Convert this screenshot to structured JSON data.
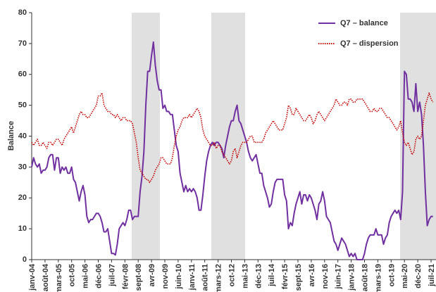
{
  "chart_data": {
    "type": "line",
    "y_label": "Balance",
    "categories": [
      "janv-04",
      null,
      null,
      null,
      null,
      null,
      null,
      "août-04",
      null,
      null,
      null,
      null,
      null,
      null,
      "mars-05",
      null,
      null,
      null,
      null,
      null,
      null,
      "oct-05",
      null,
      null,
      null,
      null,
      null,
      null,
      "mai-06",
      null,
      null,
      null,
      null,
      null,
      null,
      "déc-06",
      null,
      null,
      null,
      null,
      null,
      null,
      "juil-07",
      null,
      null,
      null,
      null,
      null,
      null,
      "févr-08",
      null,
      null,
      null,
      null,
      null,
      null,
      "sept-08",
      null,
      null,
      null,
      null,
      null,
      null,
      "avr-09",
      null,
      null,
      null,
      null,
      null,
      null,
      "nov-09",
      null,
      null,
      null,
      null,
      null,
      null,
      "juin-10",
      null,
      null,
      null,
      null,
      null,
      null,
      "janv-11",
      null,
      null,
      null,
      null,
      null,
      null,
      "août-11",
      null,
      null,
      null,
      null,
      null,
      null,
      "mars-12",
      null,
      null,
      null,
      null,
      null,
      null,
      "oct-12",
      null,
      null,
      null,
      null,
      null,
      null,
      "mai-13",
      null,
      null,
      null,
      null,
      null,
      null,
      "déc-13",
      null,
      null,
      null,
      null,
      null,
      null,
      "juil-14",
      null,
      null,
      null,
      null,
      null,
      null,
      "févr-15",
      null,
      null,
      null,
      null,
      null,
      null,
      "sept-15",
      null,
      null,
      null,
      null,
      null,
      null,
      "avr-16",
      null,
      null,
      null,
      null,
      null,
      null,
      "nov-16",
      null,
      null,
      null,
      null,
      null,
      null,
      "juin-17",
      null,
      null,
      null,
      null,
      null,
      null,
      "janv-18",
      null,
      null,
      null,
      null,
      null,
      null,
      "août-18",
      null,
      null,
      null,
      null,
      null,
      null,
      "mars-19",
      null,
      null,
      null,
      null,
      null,
      null,
      "oct-19",
      null,
      null,
      null,
      null,
      null,
      null,
      "mai-20",
      null,
      null,
      null,
      null,
      null,
      null,
      "déc-20",
      null,
      null,
      null,
      null,
      null,
      null,
      "juil-21",
      null
    ],
    "series": [
      {
        "name": "Q7 – balance",
        "color": "#7030a0",
        "dash": "solid",
        "values": [
          30,
          33,
          31,
          30,
          31,
          28,
          29,
          29,
          30,
          33,
          34,
          34,
          29,
          33,
          33,
          28,
          30,
          29,
          30,
          28,
          28,
          30,
          26,
          25,
          22,
          19,
          22,
          24,
          21,
          14,
          12,
          13,
          13,
          14,
          15,
          15,
          14,
          12,
          9,
          9,
          10,
          6,
          2,
          2,
          1.5,
          5,
          10,
          11,
          12,
          11,
          13,
          16,
          16,
          13,
          14,
          14,
          14,
          22,
          27,
          35,
          50,
          61,
          61,
          66,
          70.5,
          63,
          58,
          55,
          55,
          49,
          50,
          48,
          48,
          47,
          47,
          42,
          37,
          35,
          28,
          25,
          22,
          24,
          22,
          23,
          22,
          23,
          22,
          20,
          16,
          16,
          21,
          27,
          32,
          35,
          37,
          38,
          37,
          38,
          38,
          37,
          36,
          33,
          37,
          40,
          43,
          45,
          45,
          48,
          50,
          45,
          44,
          42,
          40,
          38,
          35,
          33,
          32,
          33,
          34,
          31,
          28,
          28,
          24,
          22,
          20,
          17,
          18,
          22,
          25,
          26,
          26,
          26,
          26,
          21,
          19,
          10,
          12,
          11,
          15,
          18,
          20,
          22,
          18,
          21,
          21,
          19,
          21,
          20,
          18,
          16,
          13,
          18,
          19,
          22,
          19,
          14,
          13,
          12,
          9,
          6,
          5,
          3,
          5,
          7,
          6,
          5,
          3,
          1,
          2,
          1,
          2,
          0,
          0,
          0,
          0,
          2,
          5,
          7,
          8,
          8,
          8,
          10,
          8,
          8,
          8,
          5,
          7,
          8,
          12,
          14,
          15,
          16,
          15,
          16,
          13,
          22,
          61,
          60,
          52,
          52,
          51,
          48,
          57,
          48,
          51,
          47,
          37,
          22,
          11,
          13,
          14,
          14
        ]
      },
      {
        "name": "Q7 – dispersion",
        "color": "#c00000",
        "dash": "dotted",
        "values": [
          38,
          37,
          38,
          39,
          37,
          37,
          38,
          37,
          36,
          38,
          38,
          37,
          38,
          39,
          39,
          38,
          37,
          39,
          40,
          41,
          42,
          43,
          41,
          43,
          45,
          47,
          48,
          47,
          47,
          46,
          46,
          47,
          48,
          49,
          50,
          53,
          53,
          54,
          50,
          49,
          48,
          48,
          47,
          47,
          46,
          47,
          46,
          45,
          46,
          46,
          45,
          45,
          45,
          44,
          41,
          38,
          33,
          29,
          28,
          27,
          26,
          26,
          25,
          26,
          27,
          29,
          30,
          31,
          33,
          33,
          32,
          31,
          31,
          31,
          33,
          37,
          40,
          42,
          43,
          45,
          46,
          46,
          46,
          47,
          46,
          47,
          48,
          49,
          48,
          46,
          42,
          40,
          39,
          38,
          37,
          37,
          38,
          36,
          37,
          37,
          35,
          34,
          33,
          32,
          31,
          32,
          35,
          36,
          33,
          35,
          37,
          38,
          38,
          38,
          39,
          40,
          40,
          38,
          38,
          38,
          38,
          38,
          39,
          41,
          42,
          43,
          44,
          45,
          44,
          43,
          42,
          42,
          42,
          44,
          46,
          50,
          49,
          47,
          47,
          49,
          48,
          47,
          46,
          45,
          45,
          46,
          47,
          46,
          44,
          45,
          47,
          48,
          47,
          46,
          45,
          46,
          47,
          48,
          49,
          50,
          52,
          51,
          50,
          50,
          51,
          51,
          50,
          52,
          52,
          51,
          51,
          52,
          52,
          52,
          52,
          51,
          50,
          49,
          48,
          48,
          49,
          48,
          48,
          49,
          49,
          48,
          47,
          46,
          46,
          45,
          44,
          43,
          42,
          43,
          45,
          41,
          38,
          37,
          38,
          36,
          34,
          35,
          39,
          40,
          39,
          40,
          45,
          50,
          52,
          54,
          52,
          51
        ]
      }
    ],
    "ylim": [
      0,
      80
    ],
    "yticks": [
      0,
      10,
      20,
      30,
      40,
      50,
      60,
      70,
      80
    ],
    "legend": "top-right"
  }
}
